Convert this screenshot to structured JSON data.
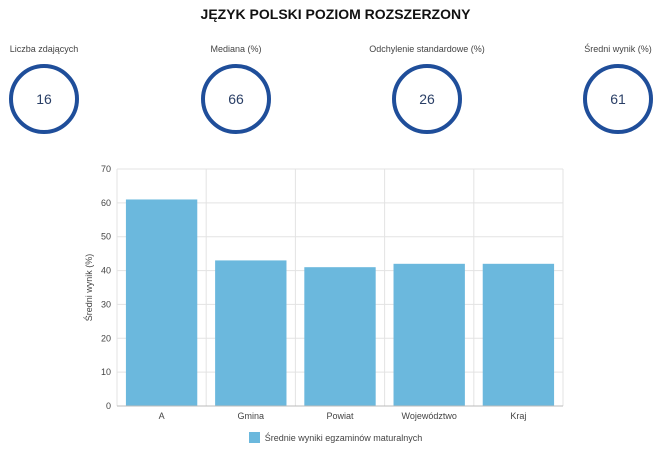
{
  "title": "JĘZYK POLSKI POZIOM ROZSZERZONY",
  "stats": [
    {
      "label": "Liczba zdających",
      "value": "16"
    },
    {
      "label": "Mediana (%)",
      "value": "66"
    },
    {
      "label": "Odchylenie standardowe (%)",
      "value": "26"
    },
    {
      "label": "Średni wynik (%)",
      "value": "61"
    }
  ],
  "colors": {
    "ring": "#1f4e9a",
    "bar": "#6bb8dd",
    "grid": "#e3e3e3"
  },
  "chart_data": {
    "type": "bar",
    "categories": [
      "A",
      "Gmina",
      "Powiat",
      "Województwo",
      "Kraj"
    ],
    "series": [
      {
        "name": "Średnie wyniki egzaminów maturalnych",
        "values": [
          61,
          43,
          41,
          42,
          42
        ]
      }
    ],
    "xlabel": "",
    "ylabel": "Średni wynik (%)",
    "ylim": [
      0,
      70
    ],
    "yticks": [
      0,
      10,
      20,
      30,
      40,
      50,
      60,
      70
    ],
    "grid": true,
    "legend": "bottom"
  }
}
